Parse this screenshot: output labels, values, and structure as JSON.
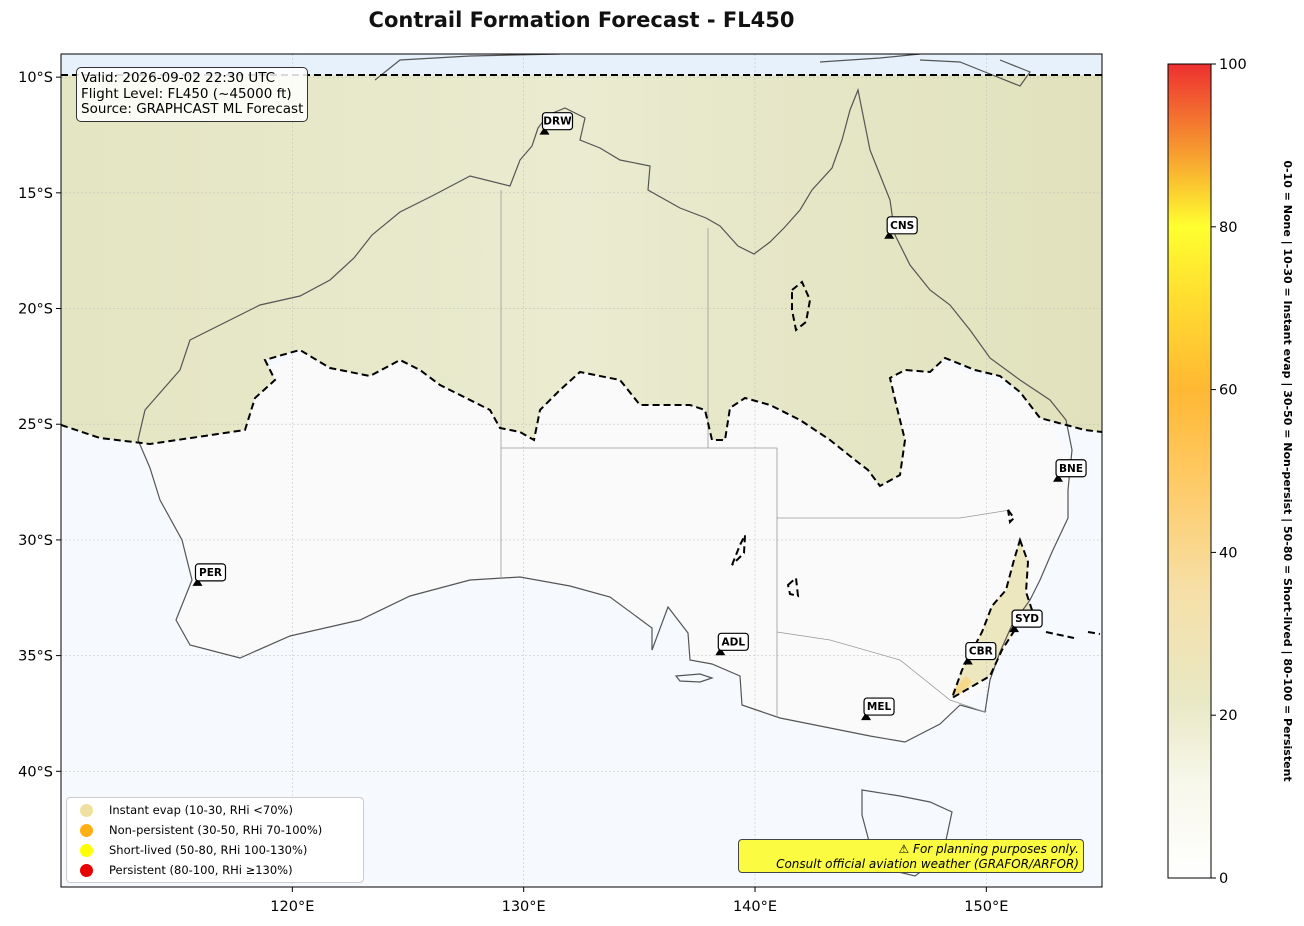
{
  "title": "Contrail Formation Forecast - FL450",
  "info": {
    "valid": "Valid: 2026-09-02 22:30 UTC",
    "flight_level": "Flight Level: FL450 (~45000 ft)",
    "source": "Source: GRAPHCAST ML Forecast"
  },
  "map_extent": {
    "lon_min": 110,
    "lon_max": 155,
    "lat_min": -45,
    "lat_max": -9
  },
  "lat_ticks": [
    {
      "lat": -10,
      "label": "10°S"
    },
    {
      "lat": -15,
      "label": "15°S"
    },
    {
      "lat": -20,
      "label": "20°S"
    },
    {
      "lat": -25,
      "label": "25°S"
    },
    {
      "lat": -30,
      "label": "30°S"
    },
    {
      "lat": -35,
      "label": "35°S"
    },
    {
      "lat": -40,
      "label": "40°S"
    }
  ],
  "lon_ticks": [
    {
      "lon": 120,
      "label": "120°E"
    },
    {
      "lon": 130,
      "label": "130°E"
    },
    {
      "lon": 140,
      "label": "140°E"
    },
    {
      "lon": 150,
      "label": "150°E"
    }
  ],
  "airports": [
    {
      "code": "DRW",
      "lon": 130.9,
      "lat": -12.4
    },
    {
      "code": "CNS",
      "lon": 145.8,
      "lat": -16.9
    },
    {
      "code": "BNE",
      "lon": 153.1,
      "lat": -27.4
    },
    {
      "code": "PER",
      "lon": 115.9,
      "lat": -31.9
    },
    {
      "code": "ADL",
      "lon": 138.5,
      "lat": -34.9
    },
    {
      "code": "SYD",
      "lon": 151.2,
      "lat": -33.9
    },
    {
      "code": "CBR",
      "lon": 149.2,
      "lat": -35.3
    },
    {
      "code": "MEL",
      "lon": 144.8,
      "lat": -37.7
    }
  ],
  "legend": [
    {
      "label": "Instant evap (10-30, RHi <70%)",
      "color": "#f0e0a0"
    },
    {
      "label": "Non-persistent (30-50, RHi 70-100%)",
      "color": "#ffb014"
    },
    {
      "label": "Short-lived (50-80, RHi 100-130%)",
      "color": "#ffff00"
    },
    {
      "label": "Persistent (80-100, RHi ≥130%)",
      "color": "#e60000"
    }
  ],
  "disclaimer": {
    "line1": "⚠ For planning purposes only.",
    "line2": "Consult official aviation weather (GRAFOR/ARFOR)"
  },
  "colorbar": {
    "min": 0,
    "max": 100,
    "ticks": [
      {
        "value": 0,
        "label": "0"
      },
      {
        "value": 20,
        "label": "20"
      },
      {
        "value": 40,
        "label": "40"
      },
      {
        "value": 60,
        "label": "60"
      },
      {
        "value": 80,
        "label": "80"
      },
      {
        "value": 100,
        "label": "100"
      }
    ],
    "side_label": "0-10 = None  |  10-30 = Instant evap  |  30-50 = Non-persist  |  50-80 = Short-lived  |  80-100 = Persistent"
  },
  "colors": {
    "low_fill": "#f8fbff",
    "instant_fill": "#e6e6c2",
    "coast": "#555555",
    "contour": "#000000"
  }
}
